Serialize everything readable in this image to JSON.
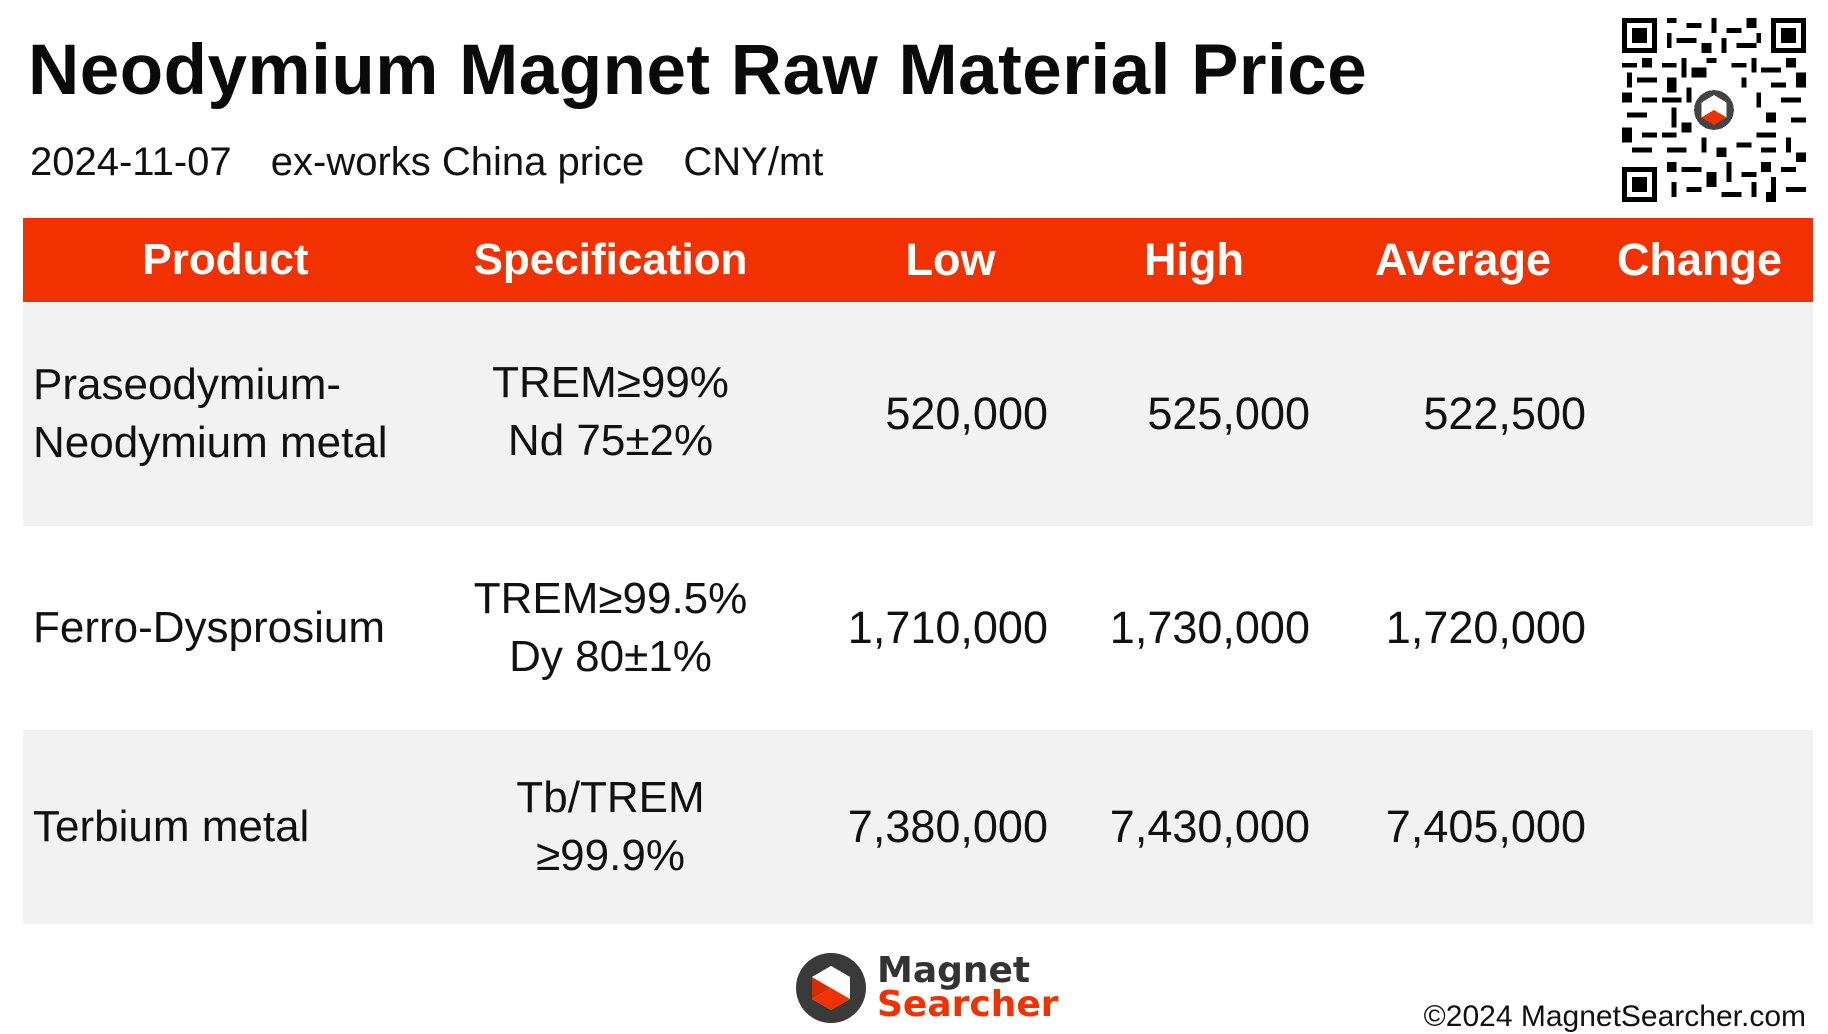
{
  "header": {
    "title": "Neodymium Magnet Raw Material Price",
    "date": "2024-11-07",
    "basis": "ex-works China price",
    "unit": "CNY/mt"
  },
  "table": {
    "columns": [
      "Product",
      "Specification",
      "Low",
      "High",
      "Average",
      "Change"
    ],
    "rows": [
      {
        "product_line1": "Praseodymium-",
        "product_line2": "Neodymium metal",
        "spec_line1": "TREM≥99%",
        "spec_line2": "Nd 75±2%",
        "low": "520,000",
        "high": "525,000",
        "average": "522,500",
        "change": ""
      },
      {
        "product_line1": "Ferro-Dysprosium",
        "product_line2": "",
        "spec_line1": "TREM≥99.5%",
        "spec_line2": "Dy 80±1%",
        "low": "1,710,000",
        "high": "1,730,000",
        "average": "1,720,000",
        "change": ""
      },
      {
        "product_line1": "Terbium metal",
        "product_line2": "",
        "spec_line1": "Tb/TREM",
        "spec_line2": "≥99.9%",
        "low": "7,380,000",
        "high": "7,430,000",
        "average": "7,405,000",
        "change": ""
      }
    ]
  },
  "footer": {
    "logo_line1": "Magnet",
    "logo_line2": "Searcher",
    "copyright": "©2024 MagnetSearcher.com"
  },
  "colors": {
    "header_bar": "#f13200",
    "row_shade": "#f2f2f2",
    "brand_orange": "#f13200"
  },
  "icons": {
    "qr": "qr-code-icon",
    "logo": "magnet-searcher-logo-icon"
  }
}
